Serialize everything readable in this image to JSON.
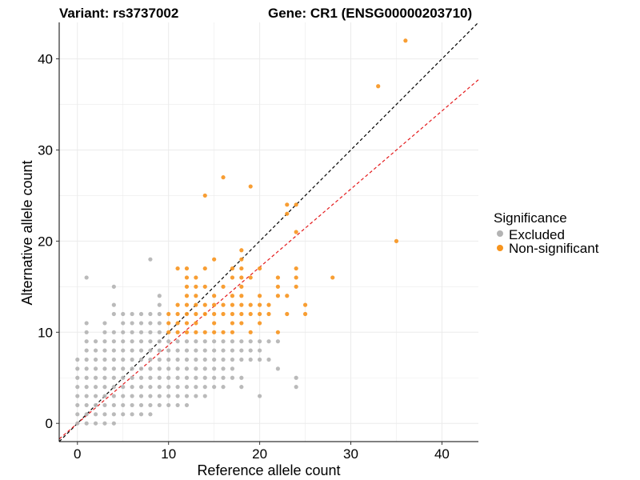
{
  "chart_data": {
    "type": "scatter",
    "title_left": "Variant: rs3737002",
    "title_right": "Gene: CR1 (ENSG00000203710)",
    "xlabel": "Reference allele count",
    "ylabel": "Alternative allele count",
    "xlim": [
      -2,
      44
    ],
    "ylim": [
      -2,
      44
    ],
    "x_ticks": [
      0,
      10,
      20,
      30,
      40
    ],
    "y_ticks": [
      0,
      10,
      20,
      30,
      40
    ],
    "grid": true,
    "legend": {
      "title": "Significance",
      "position": "right",
      "entries": [
        {
          "label": "Excluded",
          "color": "#b3b3b3"
        },
        {
          "label": "Non-significant",
          "color": "#f7941d"
        }
      ]
    },
    "reference_lines": [
      {
        "name": "identity",
        "slope": 1.0,
        "intercept": 0,
        "color": "#000000",
        "style": "dashed"
      },
      {
        "name": "fit",
        "slope": 0.857,
        "intercept": 0,
        "color": "#e41a1c",
        "style": "dashed"
      }
    ],
    "series": [
      {
        "name": "Excluded",
        "color": "#b3b3b3",
        "points": [
          [
            0,
            0
          ],
          [
            0,
            1
          ],
          [
            0,
            2
          ],
          [
            0,
            3
          ],
          [
            0,
            4
          ],
          [
            0,
            5
          ],
          [
            0,
            6
          ],
          [
            0,
            7
          ],
          [
            1,
            0
          ],
          [
            1,
            1
          ],
          [
            1,
            2
          ],
          [
            1,
            3
          ],
          [
            1,
            4
          ],
          [
            1,
            5
          ],
          [
            1,
            6
          ],
          [
            1,
            7
          ],
          [
            1,
            8
          ],
          [
            1,
            9
          ],
          [
            1,
            10
          ],
          [
            1,
            11
          ],
          [
            1,
            16
          ],
          [
            2,
            0
          ],
          [
            2,
            1
          ],
          [
            2,
            2
          ],
          [
            2,
            3
          ],
          [
            2,
            4
          ],
          [
            2,
            5
          ],
          [
            2,
            6
          ],
          [
            2,
            7
          ],
          [
            2,
            8
          ],
          [
            2,
            9
          ],
          [
            3,
            0
          ],
          [
            3,
            1
          ],
          [
            3,
            2
          ],
          [
            3,
            3
          ],
          [
            3,
            4
          ],
          [
            3,
            5
          ],
          [
            3,
            6
          ],
          [
            3,
            7
          ],
          [
            3,
            8
          ],
          [
            3,
            9
          ],
          [
            3,
            10
          ],
          [
            3,
            11
          ],
          [
            4,
            0
          ],
          [
            4,
            1
          ],
          [
            4,
            2
          ],
          [
            4,
            3
          ],
          [
            4,
            4
          ],
          [
            4,
            5
          ],
          [
            4,
            6
          ],
          [
            4,
            7
          ],
          [
            4,
            8
          ],
          [
            4,
            9
          ],
          [
            4,
            10
          ],
          [
            4,
            12
          ],
          [
            4,
            13
          ],
          [
            4,
            15
          ],
          [
            5,
            1
          ],
          [
            5,
            2
          ],
          [
            5,
            3
          ],
          [
            5,
            4
          ],
          [
            5,
            5
          ],
          [
            5,
            6
          ],
          [
            5,
            7
          ],
          [
            5,
            8
          ],
          [
            5,
            9
          ],
          [
            5,
            10
          ],
          [
            5,
            11
          ],
          [
            5,
            12
          ],
          [
            6,
            1
          ],
          [
            6,
            2
          ],
          [
            6,
            3
          ],
          [
            6,
            4
          ],
          [
            6,
            5
          ],
          [
            6,
            6
          ],
          [
            6,
            7
          ],
          [
            6,
            8
          ],
          [
            6,
            9
          ],
          [
            6,
            10
          ],
          [
            6,
            11
          ],
          [
            6,
            12
          ],
          [
            7,
            1
          ],
          [
            7,
            2
          ],
          [
            7,
            3
          ],
          [
            7,
            4
          ],
          [
            7,
            5
          ],
          [
            7,
            6
          ],
          [
            7,
            7
          ],
          [
            7,
            8
          ],
          [
            7,
            9
          ],
          [
            7,
            10
          ],
          [
            7,
            11
          ],
          [
            7,
            12
          ],
          [
            8,
            1
          ],
          [
            8,
            2
          ],
          [
            8,
            3
          ],
          [
            8,
            4
          ],
          [
            8,
            5
          ],
          [
            8,
            6
          ],
          [
            8,
            7
          ],
          [
            8,
            8
          ],
          [
            8,
            9
          ],
          [
            8,
            10
          ],
          [
            8,
            11
          ],
          [
            8,
            12
          ],
          [
            8,
            18
          ],
          [
            9,
            2
          ],
          [
            9,
            3
          ],
          [
            9,
            4
          ],
          [
            9,
            5
          ],
          [
            9,
            6
          ],
          [
            9,
            7
          ],
          [
            9,
            8
          ],
          [
            9,
            9
          ],
          [
            9,
            10
          ],
          [
            9,
            11
          ],
          [
            9,
            12
          ],
          [
            9,
            13
          ],
          [
            9,
            14
          ],
          [
            10,
            2
          ],
          [
            10,
            3
          ],
          [
            10,
            4
          ],
          [
            10,
            5
          ],
          [
            10,
            6
          ],
          [
            10,
            7
          ],
          [
            10,
            8
          ],
          [
            10,
            9
          ],
          [
            11,
            2
          ],
          [
            11,
            3
          ],
          [
            11,
            4
          ],
          [
            11,
            5
          ],
          [
            11,
            6
          ],
          [
            11,
            7
          ],
          [
            11,
            8
          ],
          [
            11,
            9
          ],
          [
            12,
            2
          ],
          [
            12,
            3
          ],
          [
            12,
            4
          ],
          [
            12,
            5
          ],
          [
            12,
            6
          ],
          [
            12,
            7
          ],
          [
            12,
            8
          ],
          [
            12,
            9
          ],
          [
            13,
            3
          ],
          [
            13,
            4
          ],
          [
            13,
            5
          ],
          [
            13,
            6
          ],
          [
            13,
            7
          ],
          [
            13,
            8
          ],
          [
            13,
            9
          ],
          [
            14,
            3
          ],
          [
            14,
            4
          ],
          [
            14,
            5
          ],
          [
            14,
            6
          ],
          [
            14,
            7
          ],
          [
            14,
            8
          ],
          [
            14,
            9
          ],
          [
            15,
            4
          ],
          [
            15,
            5
          ],
          [
            15,
            6
          ],
          [
            15,
            7
          ],
          [
            15,
            8
          ],
          [
            15,
            9
          ],
          [
            16,
            4
          ],
          [
            16,
            5
          ],
          [
            16,
            6
          ],
          [
            16,
            7
          ],
          [
            16,
            8
          ],
          [
            16,
            9
          ],
          [
            17,
            5
          ],
          [
            17,
            6
          ],
          [
            17,
            7
          ],
          [
            17,
            8
          ],
          [
            17,
            9
          ],
          [
            18,
            4
          ],
          [
            18,
            5
          ],
          [
            18,
            7
          ],
          [
            18,
            8
          ],
          [
            18,
            9
          ],
          [
            19,
            7
          ],
          [
            19,
            8
          ],
          [
            19,
            9
          ],
          [
            20,
            3
          ],
          [
            20,
            7
          ],
          [
            20,
            8
          ],
          [
            20,
            9
          ],
          [
            21,
            7
          ],
          [
            21,
            9
          ],
          [
            22,
            6
          ],
          [
            22,
            9
          ],
          [
            24,
            4
          ],
          [
            24,
            5
          ]
        ]
      },
      {
        "name": "Non-significant",
        "color": "#f7941d",
        "points": [
          [
            10,
            10
          ],
          [
            10,
            11
          ],
          [
            10,
            12
          ],
          [
            11,
            10
          ],
          [
            11,
            11
          ],
          [
            11,
            12
          ],
          [
            11,
            13
          ],
          [
            11,
            17
          ],
          [
            12,
            10
          ],
          [
            12,
            11
          ],
          [
            12,
            12
          ],
          [
            12,
            13
          ],
          [
            12,
            14
          ],
          [
            12,
            15
          ],
          [
            12,
            16
          ],
          [
            12,
            17
          ],
          [
            13,
            10
          ],
          [
            13,
            11
          ],
          [
            13,
            12
          ],
          [
            13,
            13
          ],
          [
            13,
            14
          ],
          [
            13,
            15
          ],
          [
            13,
            16
          ],
          [
            14,
            10
          ],
          [
            14,
            12
          ],
          [
            14,
            13
          ],
          [
            14,
            15
          ],
          [
            14,
            17
          ],
          [
            14,
            25
          ],
          [
            15,
            10
          ],
          [
            15,
            11
          ],
          [
            15,
            12
          ],
          [
            15,
            13
          ],
          [
            15,
            14
          ],
          [
            15,
            18
          ],
          [
            16,
            10
          ],
          [
            16,
            12
          ],
          [
            16,
            13
          ],
          [
            16,
            15
          ],
          [
            16,
            27
          ],
          [
            17,
            10
          ],
          [
            17,
            11
          ],
          [
            17,
            12
          ],
          [
            17,
            13
          ],
          [
            17,
            14
          ],
          [
            17,
            16
          ],
          [
            17,
            17
          ],
          [
            18,
            11
          ],
          [
            18,
            12
          ],
          [
            18,
            13
          ],
          [
            18,
            14
          ],
          [
            18,
            15
          ],
          [
            18,
            16
          ],
          [
            18,
            17
          ],
          [
            18,
            18
          ],
          [
            18,
            19
          ],
          [
            19,
            10
          ],
          [
            19,
            12
          ],
          [
            19,
            13
          ],
          [
            19,
            16
          ],
          [
            19,
            26
          ],
          [
            20,
            11
          ],
          [
            20,
            12
          ],
          [
            20,
            13
          ],
          [
            20,
            14
          ],
          [
            20,
            17
          ],
          [
            21,
            12
          ],
          [
            21,
            13
          ],
          [
            22,
            10
          ],
          [
            22,
            14
          ],
          [
            22,
            15
          ],
          [
            22,
            16
          ],
          [
            23,
            23
          ],
          [
            23,
            24
          ],
          [
            23,
            12
          ],
          [
            23,
            14
          ],
          [
            24,
            15
          ],
          [
            24,
            16
          ],
          [
            24,
            17
          ],
          [
            24,
            21
          ],
          [
            24,
            24
          ],
          [
            25,
            12
          ],
          [
            25,
            13
          ],
          [
            28,
            16
          ],
          [
            33,
            37
          ],
          [
            35,
            20
          ],
          [
            36,
            42
          ]
        ]
      }
    ]
  }
}
